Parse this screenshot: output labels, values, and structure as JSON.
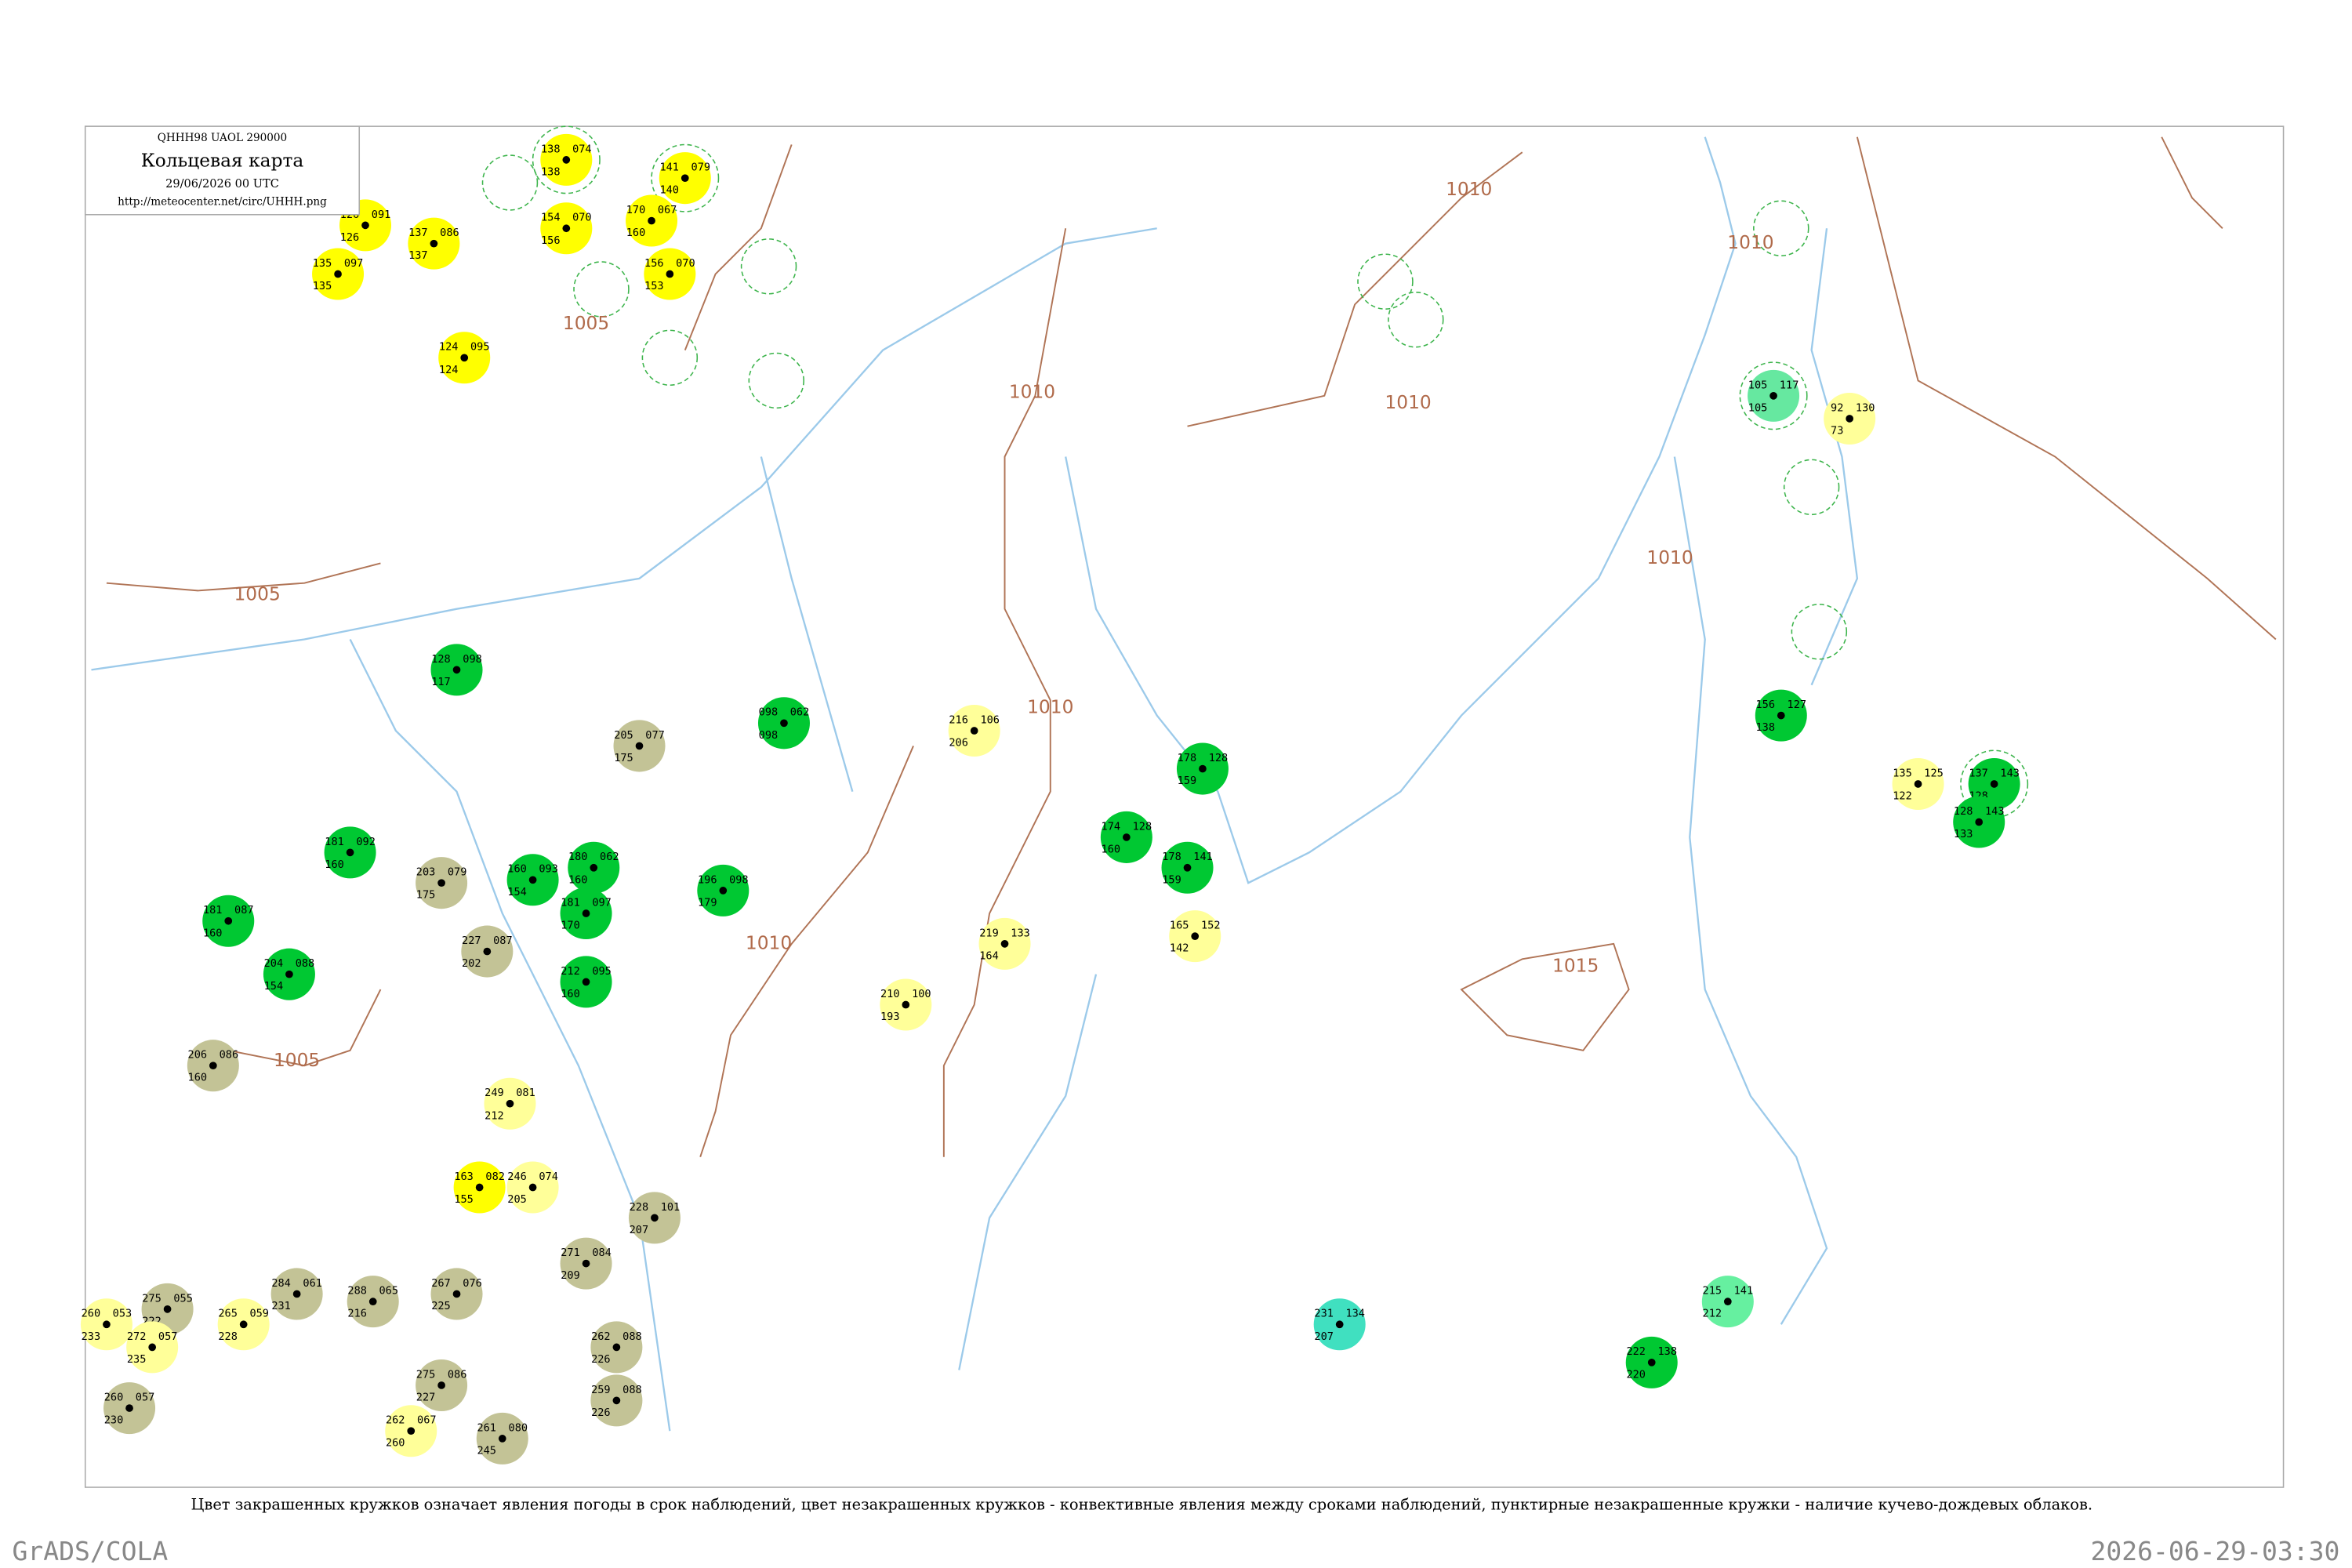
{
  "header": {
    "code": "QHHH98 UAOL 290000",
    "title": "Кольцевая карта",
    "date": "29/06/2026 00 UTC",
    "url": "http://meteocenter.net/circ/UHHH.png"
  },
  "footer": {
    "caption": "Цвет закрашенных кружков означает явления погоды в срок наблюдений, цвет незакрашенных кружков - конвективные явления между сроками наблюдений, пунктирные незакрашенные кружки - наличие кучево-дождевых облаков.",
    "software": "GrADS/COLA",
    "timestamp": "2026-06-29-03:30"
  },
  "isobar_labels": [
    "1010",
    "1010",
    "1010",
    "1010",
    "1010",
    "1010",
    "1010",
    "1005",
    "1005",
    "1005",
    "1015"
  ],
  "stations": [
    {
      "temperature": "126",
      "pressure": "091",
      "dewpoint": "126",
      "color": "#ffff00"
    },
    {
      "temperature": "135",
      "pressure": "097",
      "dewpoint": "135",
      "color": "#ffff00"
    },
    {
      "temperature": "137",
      "pressure": "086",
      "dewpoint": "137",
      "color": "#ffff00"
    },
    {
      "temperature": "124",
      "pressure": "095",
      "dewpoint": "124",
      "color": "#ffff00"
    },
    {
      "temperature": "138",
      "pressure": "074",
      "dewpoint": "138",
      "color": "#ffff00"
    },
    {
      "temperature": "154",
      "pressure": "070",
      "dewpoint": "156",
      "color": "#ffff00"
    },
    {
      "temperature": "141",
      "pressure": "079",
      "dewpoint": "140",
      "color": "#ffff00"
    },
    {
      "temperature": "170",
      "pressure": "067",
      "dewpoint": "160",
      "color": "#ffff00"
    },
    {
      "temperature": "156",
      "pressure": "070",
      "dewpoint": "153",
      "color": "#ffff00"
    },
    {
      "temperature": "128",
      "pressure": "098",
      "dewpoint": "117",
      "color": "#00c832"
    },
    {
      "temperature": "098",
      "pressure": "062",
      "dewpoint": "098",
      "color": "#00c832"
    },
    {
      "temperature": "205",
      "pressure": "077",
      "dewpoint": "175",
      "color": "#c3c396"
    },
    {
      "temperature": "181",
      "pressure": "092",
      "dewpoint": "160",
      "color": "#00c832"
    },
    {
      "temperature": "203",
      "pressure": "079",
      "dewpoint": "175",
      "color": "#c3c396"
    },
    {
      "temperature": "227",
      "pressure": "087",
      "dewpoint": "202",
      "color": "#c3c396"
    },
    {
      "temperature": "160",
      "pressure": "093",
      "dewpoint": "154",
      "color": "#00c832"
    },
    {
      "temperature": "180",
      "pressure": "062",
      "dewpoint": "160",
      "color": "#00c832"
    },
    {
      "temperature": "181",
      "pressure": "097",
      "dewpoint": "170",
      "color": "#00c832"
    },
    {
      "temperature": "212",
      "pressure": "095",
      "dewpoint": "160",
      "color": "#00c832"
    },
    {
      "temperature": "196",
      "pressure": "098",
      "dewpoint": "179",
      "color": "#00c832"
    },
    {
      "temperature": "181",
      "pressure": "087",
      "dewpoint": "160",
      "color": "#00c832"
    },
    {
      "temperature": "204",
      "pressure": "088",
      "dewpoint": "154",
      "color": "#00c832"
    },
    {
      "temperature": "206",
      "pressure": "086",
      "dewpoint": "160",
      "color": "#c3c396"
    },
    {
      "temperature": "216",
      "pressure": "106",
      "dewpoint": "206",
      "color": "#ffff99"
    },
    {
      "temperature": "210",
      "pressure": "100",
      "dewpoint": "193",
      "color": "#ffff99"
    },
    {
      "temperature": "219",
      "pressure": "133",
      "dewpoint": "164",
      "color": "#ffff99"
    },
    {
      "temperature": "249",
      "pressure": "081",
      "dewpoint": "212",
      "color": "#ffff99"
    },
    {
      "temperature": "163",
      "pressure": "082",
      "dewpoint": "155",
      "color": "#ffff00"
    },
    {
      "temperature": "246",
      "pressure": "074",
      "dewpoint": "205",
      "color": "#ffff99"
    },
    {
      "temperature": "228",
      "pressure": "101",
      "dewpoint": "207",
      "color": "#c3c396"
    },
    {
      "temperature": "271",
      "pressure": "084",
      "dewpoint": "209",
      "color": "#c3c396"
    },
    {
      "temperature": "267",
      "pressure": "076",
      "dewpoint": "225",
      "color": "#c3c396"
    },
    {
      "temperature": "284",
      "pressure": "061",
      "dewpoint": "231",
      "color": "#c3c396"
    },
    {
      "temperature": "288",
      "pressure": "065",
      "dewpoint": "216",
      "color": "#c3c396"
    },
    {
      "temperature": "275",
      "pressure": "055",
      "dewpoint": "222",
      "color": "#c3c396"
    },
    {
      "temperature": "260",
      "pressure": "053",
      "dewpoint": "233",
      "color": "#ffff99"
    },
    {
      "temperature": "272",
      "pressure": "057",
      "dewpoint": "235",
      "color": "#ffff99"
    },
    {
      "temperature": "265",
      "pressure": "059",
      "dewpoint": "228",
      "color": "#ffff99"
    },
    {
      "temperature": "260",
      "pressure": "057",
      "dewpoint": "230",
      "color": "#c3c396"
    },
    {
      "temperature": "262",
      "pressure": "088",
      "dewpoint": "226",
      "color": "#c3c396"
    },
    {
      "temperature": "259",
      "pressure": "088",
      "dewpoint": "226",
      "color": "#c3c396"
    },
    {
      "temperature": "261",
      "pressure": "080",
      "dewpoint": "245",
      "color": "#c3c396"
    },
    {
      "temperature": "262",
      "pressure": "067",
      "dewpoint": "260",
      "color": "#ffff99"
    },
    {
      "temperature": "275",
      "pressure": "086",
      "dewpoint": "227",
      "color": "#c3c396"
    },
    {
      "temperature": "178",
      "pressure": "128",
      "dewpoint": "159",
      "color": "#00c832"
    },
    {
      "temperature": "174",
      "pressure": "128",
      "dewpoint": "160",
      "color": "#00c832"
    },
    {
      "temperature": "178",
      "pressure": "141",
      "dewpoint": "159",
      "color": "#00c832"
    },
    {
      "temperature": "165",
      "pressure": "152",
      "dewpoint": "142",
      "color": "#ffff99"
    },
    {
      "temperature": "231",
      "pressure": "134",
      "dewpoint": "207",
      "color": "#40e0c0"
    },
    {
      "temperature": "215",
      "pressure": "141",
      "dewpoint": "212",
      "color": "#66f0a0"
    },
    {
      "temperature": "222",
      "pressure": "138",
      "dewpoint": "220",
      "color": "#00c832"
    },
    {
      "temperature": "156",
      "pressure": "127",
      "dewpoint": "138",
      "color": "#00c832"
    },
    {
      "temperature": "137",
      "pressure": "143",
      "dewpoint": "128",
      "color": "#00c832"
    },
    {
      "temperature": "128",
      "pressure": "143",
      "dewpoint": "133",
      "color": "#00c832"
    },
    {
      "temperature": "105",
      "pressure": "117",
      "dewpoint": "105",
      "color": "#66e8a0"
    },
    {
      "temperature": "92",
      "pressure": "130",
      "dewpoint": "73",
      "color": "#ffff99"
    },
    {
      "temperature": "135",
      "pressure": "125",
      "dewpoint": "122",
      "color": "#ffff99"
    }
  ]
}
